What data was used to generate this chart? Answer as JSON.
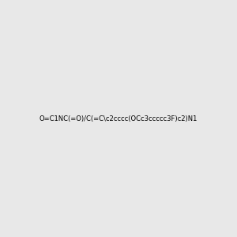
{
  "smiles": "O=C1NC(=O)/C(=C\\c2cccc(OCc3ccccc3F)c2)N1",
  "title": "",
  "background_color": "#e8e8e8",
  "img_size": [
    300,
    300
  ]
}
